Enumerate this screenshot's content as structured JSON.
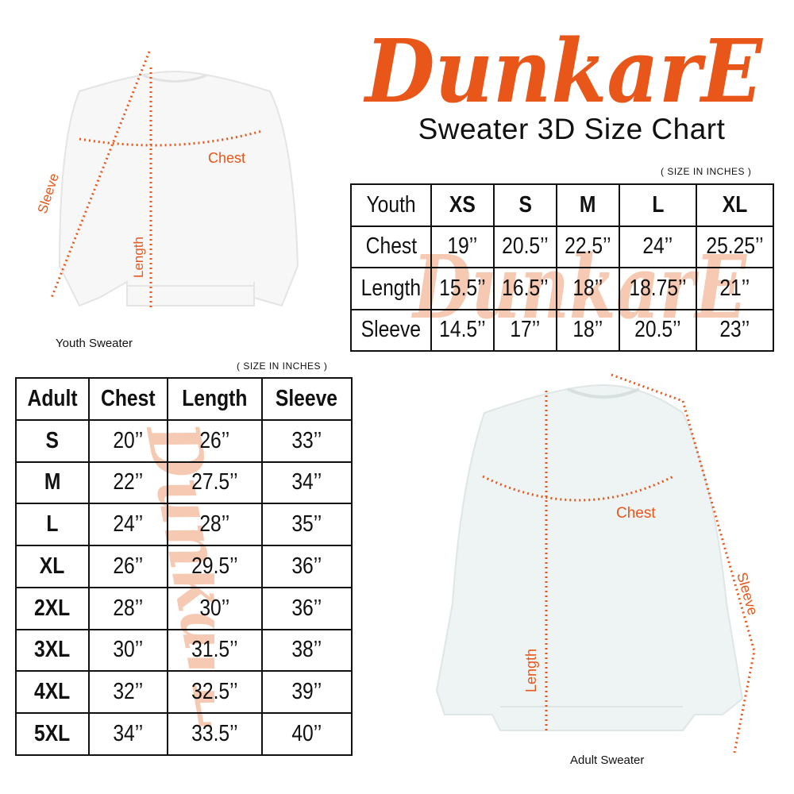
{
  "brand": {
    "logo_text": "DunkarE",
    "color": "#e8561a",
    "watermark_color": "#f6c9b3"
  },
  "title": "Sweater 3D Size Chart",
  "youth": {
    "unit_note": "( SIZE IN INCHES )",
    "caption": "Youth Sweater",
    "measure_labels": {
      "chest": "Chest",
      "length": "Length",
      "sleeve": "Sleeve"
    },
    "table": {
      "headers": [
        "Youth",
        "XS",
        "S",
        "M",
        "L",
        "XL"
      ],
      "rows": [
        [
          "Chest",
          "19’’",
          "20.5’’",
          "22.5’’",
          "24’’",
          "25.25’’"
        ],
        [
          "Length",
          "15.5’’",
          "16.5’’",
          "18’’",
          "18.75’’",
          "21’’"
        ],
        [
          "Sleeve",
          "14.5’’",
          "17’’",
          "18’’",
          "20.5’’",
          "23’’"
        ]
      ]
    }
  },
  "adult": {
    "unit_note": "( SIZE IN INCHES )",
    "caption": "Adult Sweater",
    "measure_labels": {
      "chest": "Chest",
      "length": "Length",
      "sleeve": "Sleeve"
    },
    "table": {
      "headers": [
        "Adult",
        "Chest",
        "Length",
        "Sleeve"
      ],
      "rows": [
        [
          "S",
          "20’’",
          "26’’",
          "33’’"
        ],
        [
          "M",
          "22’’",
          "27.5’’",
          "34’’"
        ],
        [
          "L",
          "24’’",
          "28’’",
          "35’’"
        ],
        [
          "XL",
          "26’’",
          "29.5’’",
          "36’’"
        ],
        [
          "2XL",
          "28’’",
          "30’’",
          "36’’"
        ],
        [
          "3XL",
          "30’’",
          "31.5’’",
          "38’’"
        ],
        [
          "4XL",
          "32’’",
          "32.5’’",
          "39’’"
        ],
        [
          "5XL",
          "34’’",
          "33.5’’",
          "40’’"
        ]
      ]
    }
  }
}
